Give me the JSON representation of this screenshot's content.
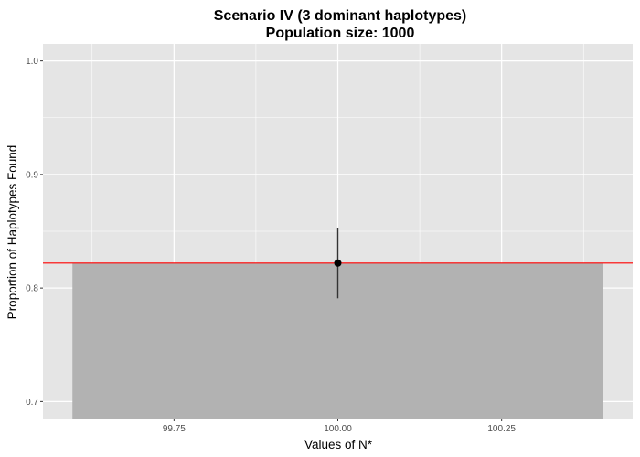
{
  "chart_data": {
    "type": "bar",
    "title": "Scenario IV (3 dominant haplotypes)",
    "subtitle": "Population size: 1000",
    "xlabel": "Values of N*",
    "ylabel": "Proportion of Haplotypes Found",
    "x": [
      100.0
    ],
    "values": [
      0.822
    ],
    "error_low": [
      0.791
    ],
    "error_high": [
      0.853
    ],
    "reference_line": 0.822,
    "xlim": [
      99.55,
      100.45
    ],
    "ylim": [
      0.685,
      1.015
    ],
    "x_ticks": [
      99.75,
      100.0,
      100.25
    ],
    "x_tick_labels": [
      "99.75",
      "100.00",
      "100.25"
    ],
    "y_ticks": [
      0.7,
      0.8,
      0.9,
      1.0
    ],
    "y_tick_labels": [
      "0.7",
      "0.8",
      "0.9",
      "1.0"
    ],
    "grid": true,
    "colors": {
      "panel": "#e5e5e5",
      "grid": "#ffffff",
      "bar": "#b2b2b2",
      "reference_line": "#ff0000",
      "point": "#000000",
      "errorbar": "#333333"
    }
  }
}
